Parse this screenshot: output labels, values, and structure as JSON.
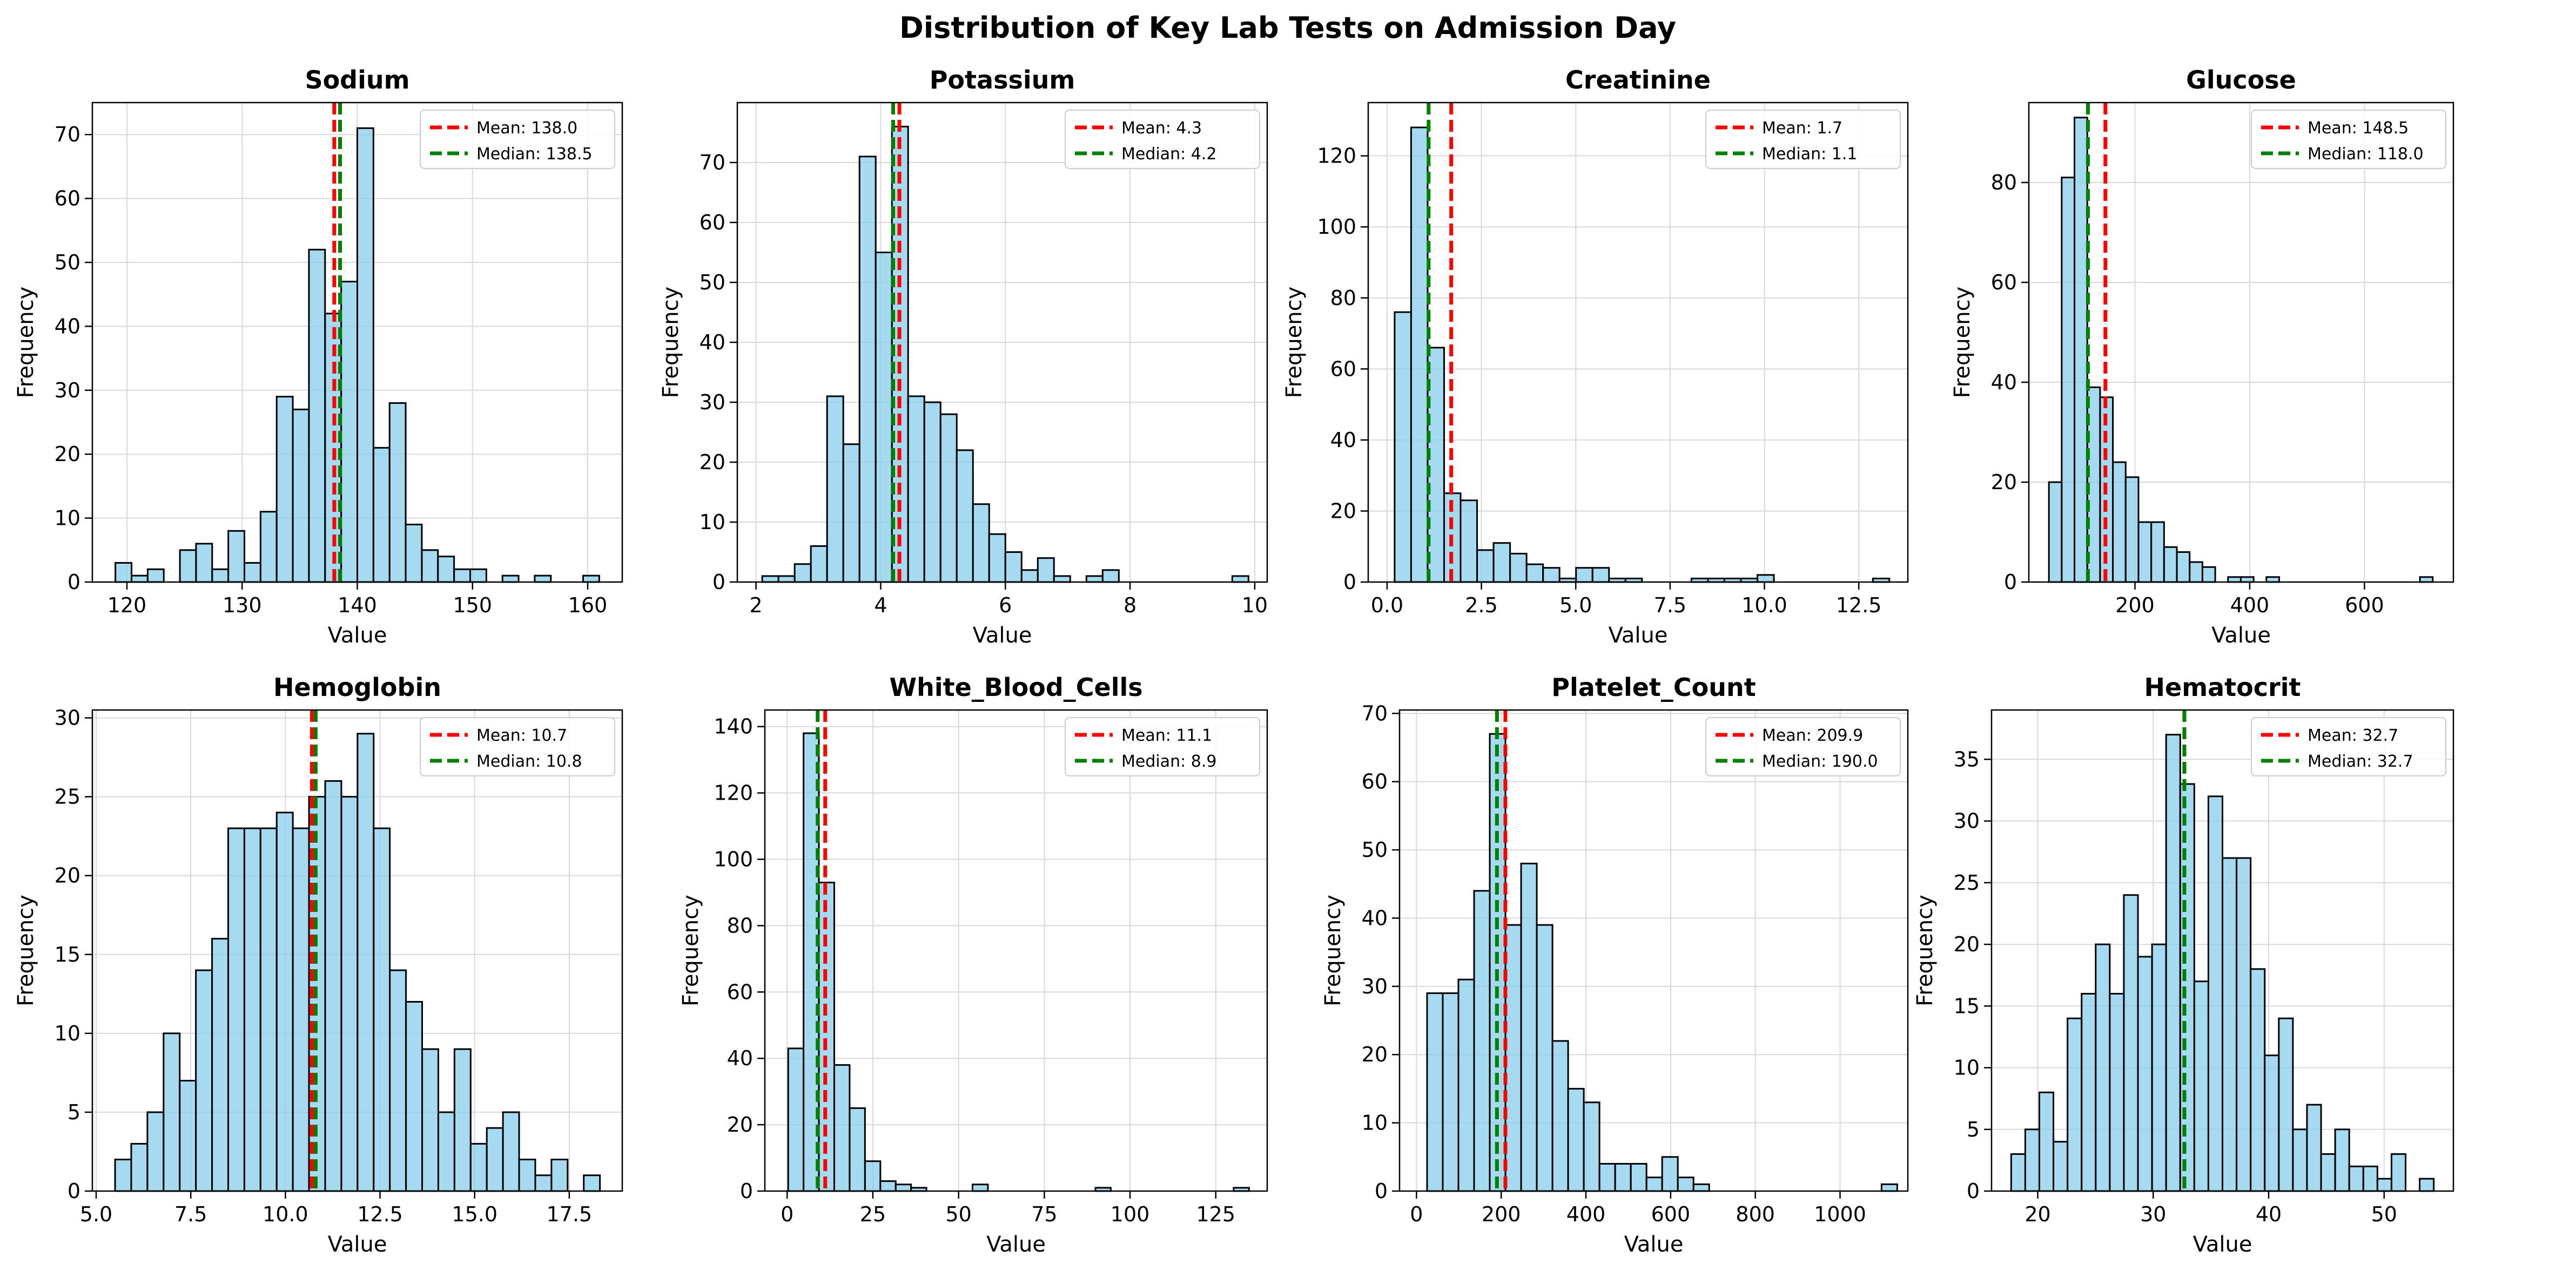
{
  "suptitle": "Distribution of Key Lab Tests on Admission Day",
  "colors": {
    "bar_fill": "#87ceeb",
    "bar_edge": "#000000",
    "mean_line": "#ff0000",
    "median_line": "#008000",
    "grid": "#d9d9d9"
  },
  "chart_data": [
    {
      "type": "bar",
      "title": "Sodium",
      "xlabel": "Value",
      "ylabel": "Frequency",
      "xlim": [
        117,
        163
      ],
      "ylim": [
        0,
        75
      ],
      "xticks": [
        120,
        130,
        140,
        150,
        160
      ],
      "yticks": [
        0,
        10,
        20,
        30,
        40,
        50,
        60,
        70
      ],
      "bin_start": 119.0,
      "bin_width": 1.4,
      "values": [
        3,
        1,
        2,
        0,
        5,
        6,
        2,
        8,
        3,
        11,
        29,
        27,
        52,
        42,
        47,
        71,
        21,
        28,
        9,
        5,
        4,
        2,
        2,
        0,
        1,
        0,
        1,
        0,
        0,
        1
      ],
      "mean": 138.0,
      "median": 138.5,
      "mean_label": "Mean: 138.0",
      "median_label": "Median: 138.5",
      "legend": "upper right",
      "grid": true
    },
    {
      "type": "bar",
      "title": "Potassium",
      "xlabel": "Value",
      "ylabel": "Frequency",
      "xlim": [
        1.7,
        10.2
      ],
      "ylim": [
        0,
        80
      ],
      "xticks": [
        2,
        4,
        6,
        8,
        10
      ],
      "yticks": [
        0,
        10,
        20,
        30,
        40,
        50,
        60,
        70
      ],
      "bin_start": 2.1,
      "bin_width": 0.26,
      "values": [
        1,
        1,
        3,
        6,
        31,
        23,
        71,
        55,
        76,
        31,
        30,
        28,
        22,
        13,
        8,
        5,
        2,
        4,
        1,
        0,
        1,
        2,
        0,
        0,
        0,
        0,
        0,
        0,
        0,
        1
      ],
      "mean": 4.3,
      "median": 4.2,
      "mean_label": "Mean: 4.3",
      "median_label": "Median: 4.2",
      "legend": "upper right",
      "grid": true
    },
    {
      "type": "bar",
      "title": "Creatinine",
      "xlabel": "Value",
      "ylabel": "Frequency",
      "xlim": [
        -0.5,
        13.8
      ],
      "ylim": [
        0,
        135
      ],
      "xticks": [
        0.0,
        2.5,
        5.0,
        7.5,
        10.0,
        12.5
      ],
      "yticks": [
        0,
        20,
        40,
        60,
        80,
        100,
        120
      ],
      "bin_start": 0.2,
      "bin_width": 0.437,
      "values": [
        76,
        128,
        66,
        25,
        23,
        9,
        11,
        8,
        5,
        4,
        1,
        4,
        4,
        1,
        1,
        0,
        0,
        0,
        1,
        1,
        1,
        1,
        2,
        0,
        0,
        0,
        0,
        0,
        0,
        1
      ],
      "mean": 1.7,
      "median": 1.1,
      "mean_label": "Mean: 1.7",
      "median_label": "Median: 1.1",
      "legend": "upper right",
      "grid": true
    },
    {
      "type": "bar",
      "title": "Glucose",
      "xlabel": "Value",
      "ylabel": "Frequency",
      "xlim": [
        15,
        755
      ],
      "ylim": [
        0,
        96
      ],
      "xticks": [
        200,
        400,
        600
      ],
      "yticks": [
        0,
        20,
        40,
        60,
        80
      ],
      "bin_start": 50,
      "bin_width": 22.3,
      "values": [
        20,
        81,
        93,
        39,
        37,
        24,
        21,
        12,
        12,
        7,
        6,
        4,
        3,
        0,
        1,
        1,
        0,
        1,
        0,
        0,
        0,
        0,
        0,
        0,
        0,
        0,
        0,
        0,
        0,
        1
      ],
      "mean": 148.5,
      "median": 118.0,
      "mean_label": "Mean: 148.5",
      "median_label": "Median: 118.0",
      "legend": "upper right",
      "grid": true
    },
    {
      "type": "bar",
      "title": "Hemoglobin",
      "xlabel": "Value",
      "ylabel": "Frequency",
      "xlim": [
        4.9,
        18.9
      ],
      "ylim": [
        0,
        30.5
      ],
      "xticks": [
        5.0,
        7.5,
        10.0,
        12.5,
        15.0,
        17.5
      ],
      "yticks": [
        0,
        5,
        10,
        15,
        20,
        25,
        30
      ],
      "bin_start": 5.5,
      "bin_width": 0.427,
      "values": [
        2,
        3,
        5,
        10,
        7,
        14,
        16,
        23,
        23,
        23,
        24,
        23,
        25,
        26,
        25,
        29,
        23,
        14,
        12,
        9,
        5,
        9,
        3,
        4,
        5,
        2,
        1,
        2,
        0,
        1
      ],
      "mean": 10.7,
      "median": 10.8,
      "mean_label": "Mean: 10.7",
      "median_label": "Median: 10.8",
      "legend": "upper right",
      "grid": true
    },
    {
      "type": "bar",
      "title": "White_Blood_Cells",
      "xlabel": "Value",
      "ylabel": "Frequency",
      "xlim": [
        -6.5,
        140
      ],
      "ylim": [
        0,
        145
      ],
      "xticks": [
        0,
        25,
        50,
        75,
        100,
        125
      ],
      "yticks": [
        0,
        20,
        40,
        60,
        80,
        100,
        120,
        140
      ],
      "bin_start": 0.3,
      "bin_width": 4.48,
      "values": [
        43,
        138,
        93,
        38,
        25,
        9,
        3,
        2,
        1,
        0,
        0,
        0,
        2,
        0,
        0,
        0,
        0,
        0,
        0,
        0,
        1,
        0,
        0,
        0,
        0,
        0,
        0,
        0,
        0,
        1
      ],
      "mean": 11.1,
      "median": 8.9,
      "mean_label": "Mean: 11.1",
      "median_label": "Median: 8.9",
      "legend": "upper right",
      "grid": true
    },
    {
      "type": "bar",
      "title": "Platelet_Count",
      "xlabel": "Value",
      "ylabel": "Frequency",
      "xlim": [
        -40,
        1160
      ],
      "ylim": [
        0,
        70.5
      ],
      "xticks": [
        0,
        200,
        400,
        600,
        800,
        1000
      ],
      "yticks": [
        0,
        10,
        20,
        30,
        40,
        50,
        60,
        70
      ],
      "bin_start": 25,
      "bin_width": 37,
      "values": [
        29,
        29,
        31,
        44,
        67,
        39,
        48,
        39,
        22,
        15,
        13,
        4,
        4,
        4,
        2,
        5,
        2,
        1,
        0,
        0,
        0,
        0,
        0,
        0,
        0,
        0,
        0,
        0,
        0,
        1
      ],
      "mean": 209.9,
      "median": 190.0,
      "mean_label": "Mean: 209.9",
      "median_label": "Median: 190.0",
      "legend": "upper right",
      "grid": true
    },
    {
      "type": "bar",
      "title": "Hematocrit",
      "xlabel": "Value",
      "ylabel": "Frequency",
      "xlim": [
        16,
        56
      ],
      "ylim": [
        0,
        39
      ],
      "xticks": [
        20,
        30,
        40,
        50
      ],
      "yticks": [
        0,
        5,
        10,
        15,
        20,
        25,
        30,
        35
      ],
      "bin_start": 17.7,
      "bin_width": 1.22,
      "values": [
        3,
        5,
        8,
        4,
        14,
        16,
        20,
        16,
        24,
        19,
        20,
        37,
        33,
        17,
        32,
        27,
        27,
        18,
        11,
        14,
        5,
        7,
        3,
        5,
        2,
        2,
        1,
        3,
        0,
        1
      ],
      "mean": 32.7,
      "median": 32.7,
      "mean_label": "Mean: 32.7",
      "median_label": "Median: 32.7",
      "legend": "upper right",
      "grid": true
    }
  ]
}
